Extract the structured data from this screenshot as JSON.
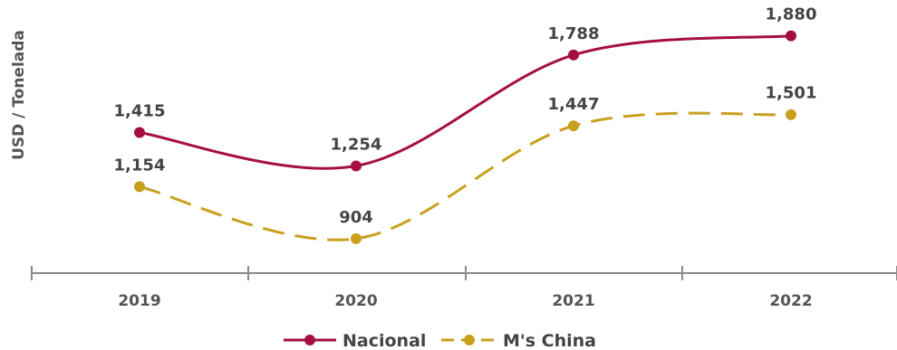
{
  "chart_data": {
    "type": "line",
    "x": [
      "2019",
      "2020",
      "2021",
      "2022"
    ],
    "ylabel": "USD / Tonelada",
    "xlabel": "",
    "ylim": [
      700,
      2000
    ],
    "grid": false,
    "legend_position": "bottom-center",
    "series": [
      {
        "name": "Nacional",
        "values": [
          1415,
          1254,
          1788,
          1880
        ],
        "value_labels": [
          "1,415",
          "1,254",
          "1,788",
          "1,880"
        ],
        "color": "#A50F3F",
        "line_style": "solid"
      },
      {
        "name": "M's China",
        "values": [
          1154,
          904,
          1447,
          1501
        ],
        "value_labels": [
          "1,154",
          "904",
          "1,447",
          "1,501"
        ],
        "color": "#C9A01E",
        "line_style": "dashed"
      }
    ]
  }
}
